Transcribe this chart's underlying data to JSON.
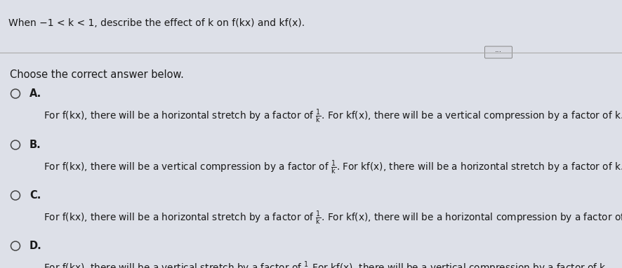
{
  "title": "When −1 < k < 1, describe the effect of k on f(kx) and kf(x).",
  "instruction": "Choose the correct answer below.",
  "bg_main": "#dde0e8",
  "bg_title": "#c5cad8",
  "bg_content": "#e8eaef",
  "separator_color": "#aaaaaa",
  "text_color": "#1a1a1a",
  "circle_color": "#444444",
  "title_fontsize": 10.0,
  "label_fontsize": 10.5,
  "body_fontsize": 9.8,
  "options": [
    {
      "label": "A.",
      "pre": "For f(kx), there will be a horizontal stretch by a factor of ",
      "post": ". For kf(x), there will be a vertical compression by a factor of k."
    },
    {
      "label": "B.",
      "pre": "For f(kx), there will be a vertical compression by a factor of ",
      "post": ". For kf(x), there will be a horizontal stretch by a factor of k."
    },
    {
      "label": "C.",
      "pre": "For f(kx), there will be a horizontal stretch by a factor of ",
      "post": ". For kf(x), there will be a horizontal compression by a factor of k."
    },
    {
      "label": "D.",
      "pre": "For f(kx), there will be a vertical stretch by a factor of ",
      "post": " For kf(x), there will be a vertical compression by a factor of k."
    }
  ],
  "dot_button": "···"
}
